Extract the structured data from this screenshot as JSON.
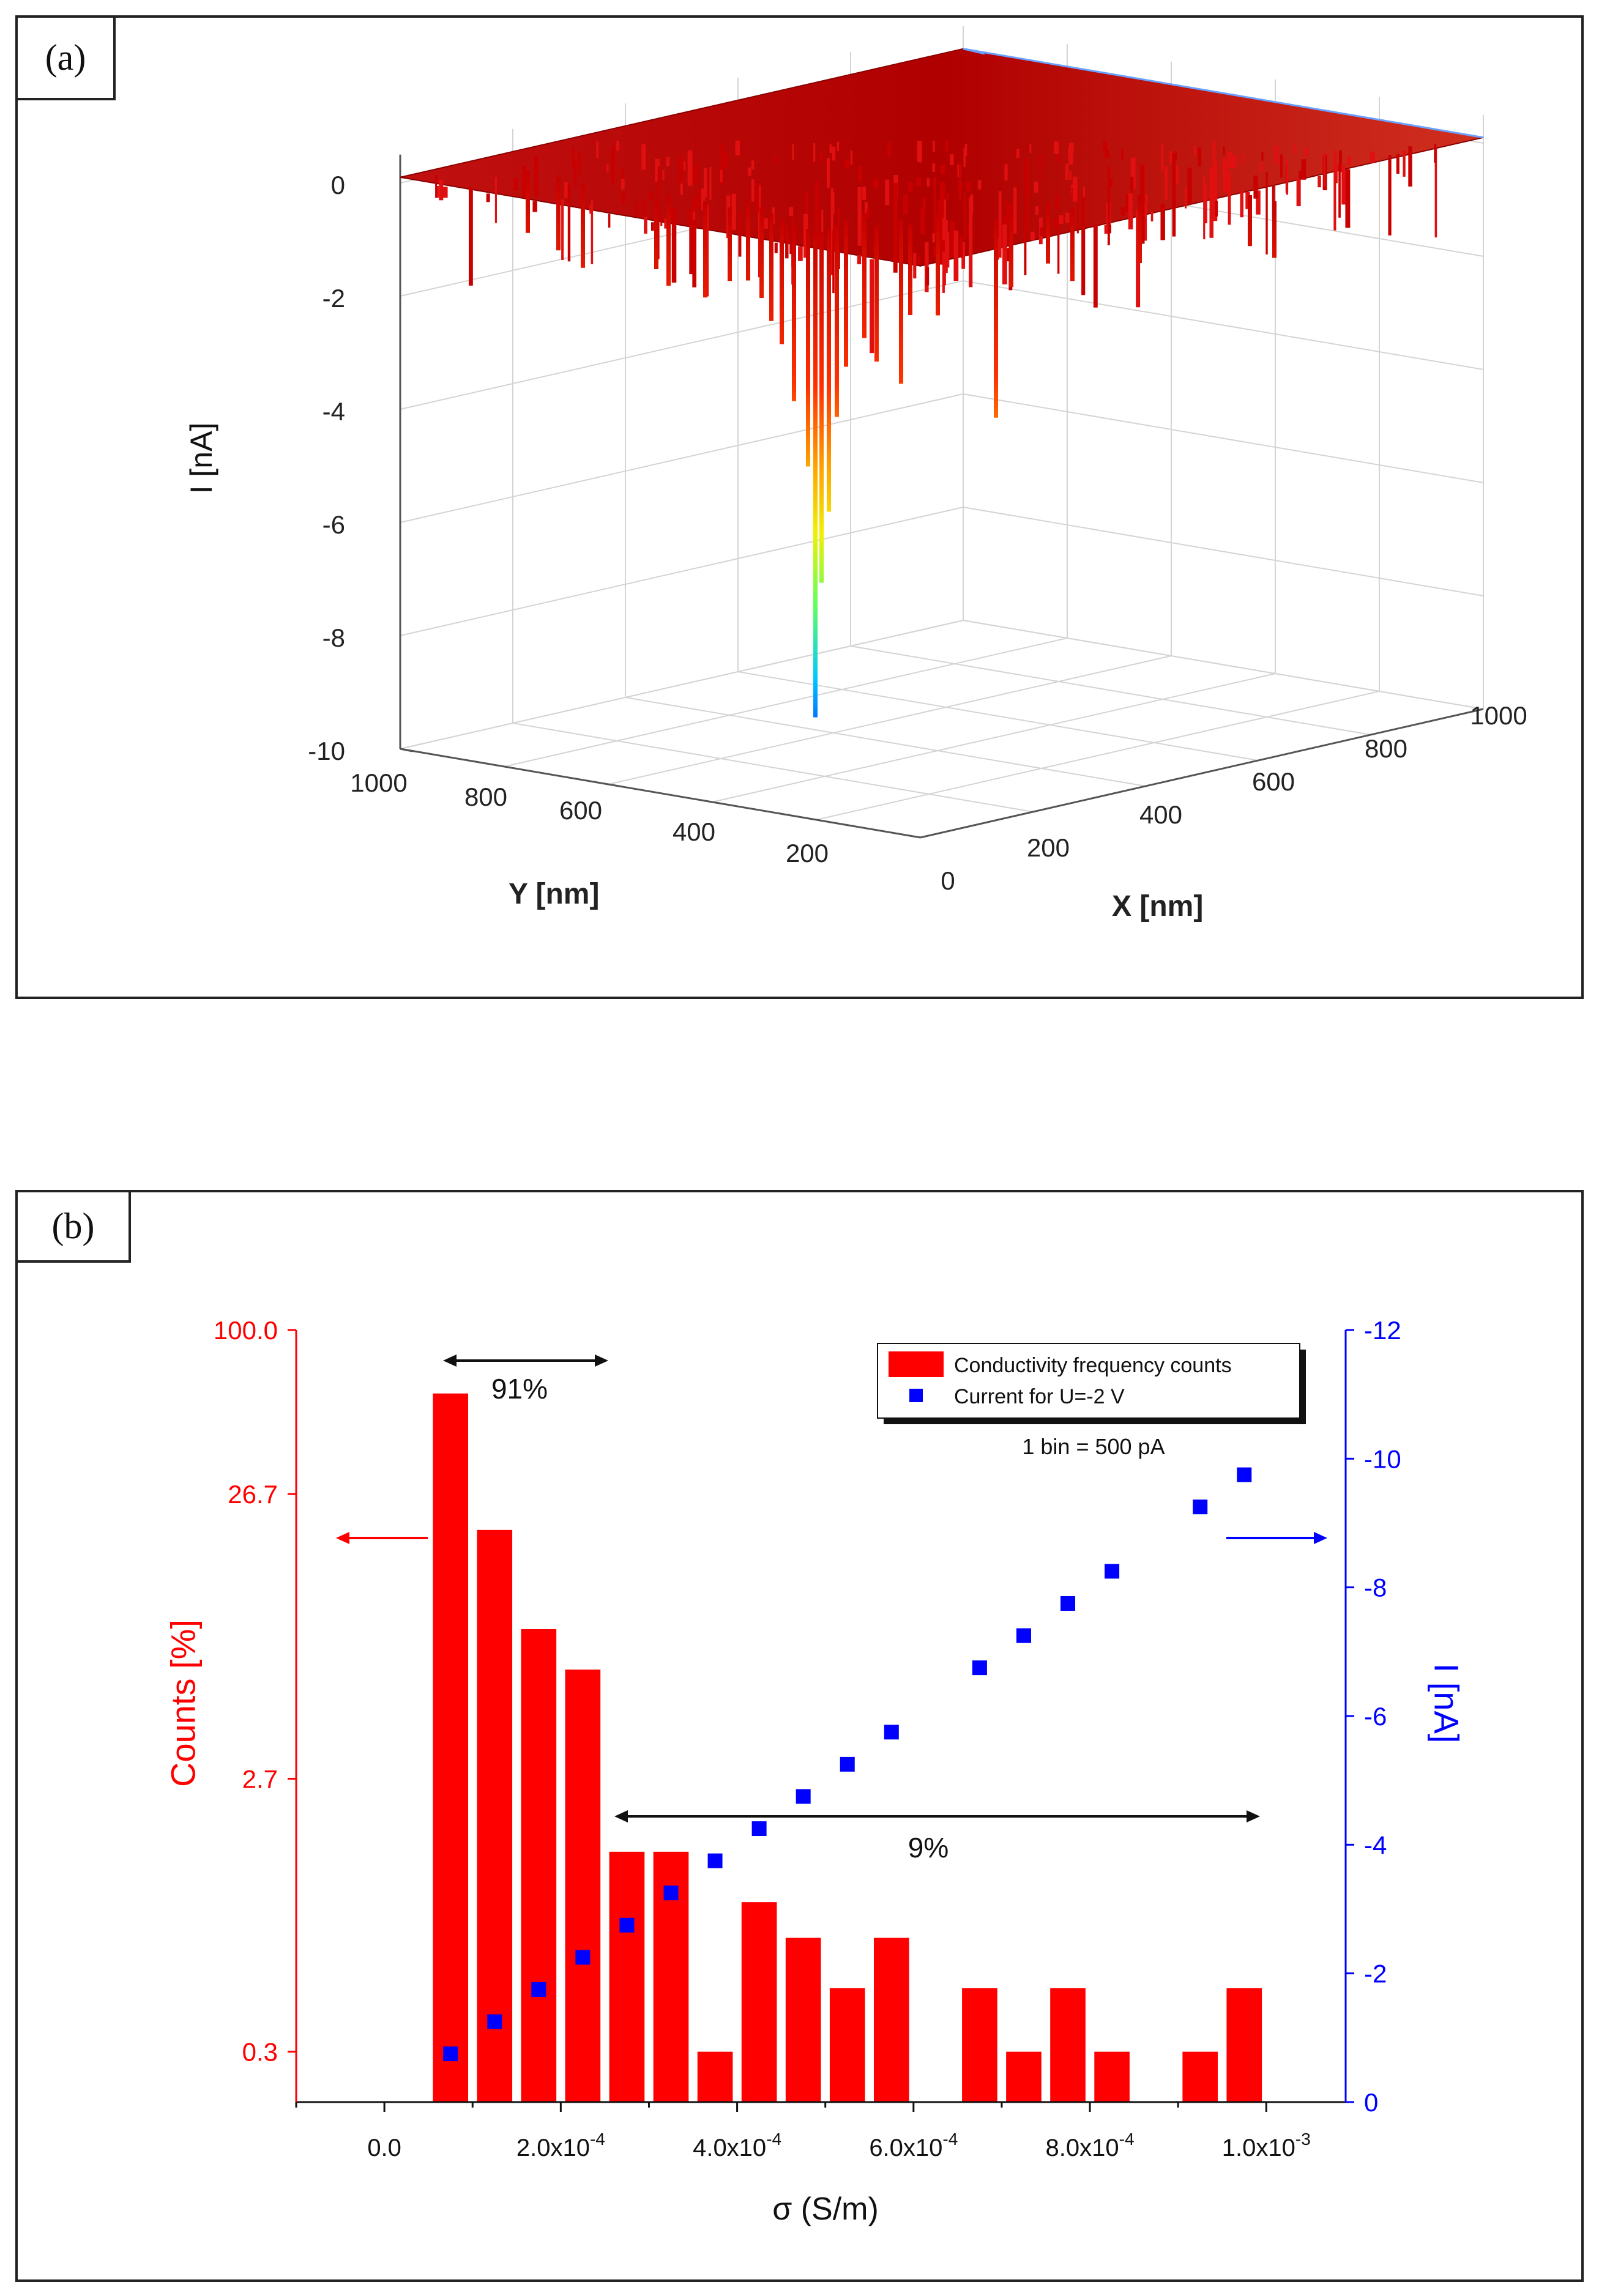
{
  "panel_a": {
    "label": "(a)",
    "chart_data": {
      "type": "surface3d",
      "title": "",
      "zlabel": "I [nA]",
      "xlabel": "X [nm]",
      "ylabel": "Y [nm]",
      "z_ticks": [
        "0",
        "-2",
        "-4",
        "-6",
        "-8",
        "-10"
      ],
      "x_ticks": [
        "0",
        "200",
        "400",
        "600",
        "800",
        "1000"
      ],
      "y_ticks": [
        "1000",
        "800",
        "600",
        "400",
        "200"
      ],
      "zlim": [
        -10,
        0.5
      ],
      "xlim": [
        0,
        1000
      ],
      "ylim": [
        0,
        1000
      ],
      "min_current_nA": -9.2,
      "colormap": [
        "#b00000",
        "#ff2a00",
        "#ff8c00",
        "#ffe000",
        "#7fff40",
        "#00c8ff",
        "#0050ff"
      ]
    }
  },
  "panel_b": {
    "label": "(b)",
    "chart_data": {
      "type": "bar",
      "xlabel": "σ (S/m)",
      "ylabel_left": "Counts [%]",
      "ylabel_right": "I [nA]",
      "left_ticks": [
        "100.0",
        "26.7",
        "2.7",
        "0.3"
      ],
      "right_ticks": [
        "-12",
        "-10",
        "-8",
        "-6",
        "-4",
        "-2",
        "0"
      ],
      "x_ticks": [
        {
          "base": "0.0",
          "exp": ""
        },
        {
          "base": "2.0x10",
          "exp": "-4"
        },
        {
          "base": "4.0x10",
          "exp": "-4"
        },
        {
          "base": "6.0x10",
          "exp": "-4"
        },
        {
          "base": "8.0x10",
          "exp": "-4"
        },
        {
          "base": "1.0x10",
          "exp": "-3"
        }
      ],
      "x_values": [
        7.5e-05,
        0.000125,
        0.000175,
        0.000225,
        0.000275,
        0.000325,
        0.000375,
        0.000425,
        0.000475,
        0.000525,
        0.000575,
        0.000625,
        0.000675,
        0.000725,
        0.000775,
        0.000825,
        0.000875,
        0.000925,
        0.000975
      ],
      "counts_percent": [
        60,
        20,
        9,
        6.5,
        1.5,
        1.5,
        0.3,
        1.0,
        0.75,
        0.5,
        0.75,
        0,
        0.5,
        0.3,
        0.5,
        0.3,
        0,
        0.3,
        0.5
      ],
      "current_nA": [
        -0.75,
        -1.25,
        -1.75,
        -2.25,
        -2.75,
        -3.25,
        -3.75,
        -4.25,
        -4.75,
        -5.25,
        -5.75,
        null,
        -6.75,
        -7.25,
        -7.75,
        -8.25,
        null,
        -9.25,
        -9.75
      ],
      "xlim": [
        -0.0001,
        0.00109
      ],
      "ylim_left_log": [
        0.2,
        100
      ],
      "ylim_right": [
        0,
        -12
      ],
      "legend": {
        "position": "top-right",
        "entries": [
          "Conductivity frequency counts",
          "Current for U=-2 V"
        ]
      },
      "annotations": {
        "bin_note": "1 bin = 500 pA",
        "pct_91": "91%",
        "pct_9": "9%"
      },
      "colors": {
        "bars": "#ff0000",
        "points": "#0000ff",
        "left_axis": "#ff0000",
        "right_axis": "#0000ff"
      }
    }
  }
}
